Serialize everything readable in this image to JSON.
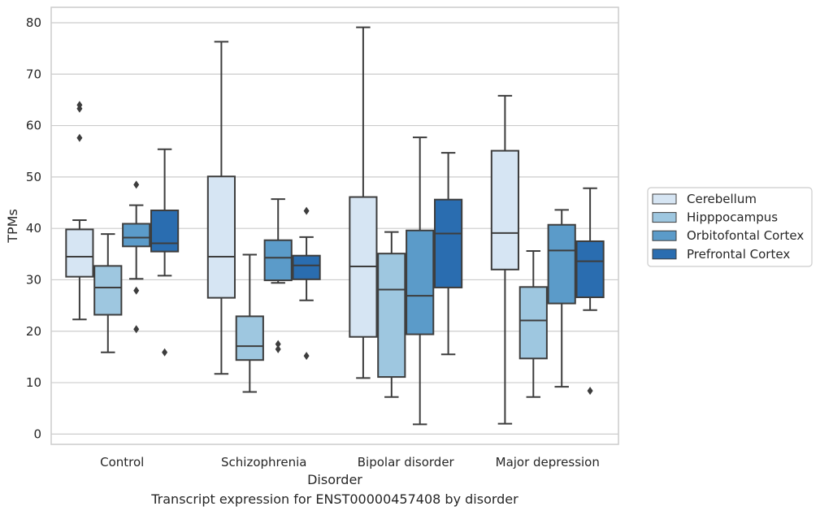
{
  "caption": "Transcript expression for ENST00000457408 by disorder",
  "chart_data": {
    "type": "box",
    "xlabel": "Disorder",
    "ylabel": "TPMs",
    "ylim": [
      -2,
      83
    ],
    "yticks": [
      0,
      10,
      20,
      30,
      40,
      50,
      60,
      70,
      80
    ],
    "grid": true,
    "legend_position": "right",
    "categories": [
      "Control",
      "Schizophrenia",
      "Bipolar disorder",
      "Major depression"
    ],
    "series": [
      {
        "name": "Cerebellum",
        "color": "#d6e5f3",
        "boxes": [
          {
            "whislo": 22.3,
            "q1": 30.6,
            "med": 34.5,
            "q3": 39.8,
            "whishi": 41.6,
            "fliers": [
              57.6,
              63.3,
              64.0
            ]
          },
          {
            "whislo": 11.7,
            "q1": 26.5,
            "med": 34.5,
            "q3": 50.1,
            "whishi": 76.3,
            "fliers": []
          },
          {
            "whislo": 10.9,
            "q1": 18.9,
            "med": 32.6,
            "q3": 46.1,
            "whishi": 79.1,
            "fliers": []
          },
          {
            "whislo": 2.0,
            "q1": 32.0,
            "med": 39.1,
            "q3": 55.1,
            "whishi": 65.8,
            "fliers": []
          }
        ]
      },
      {
        "name": "Hipppocampus",
        "color": "#9ec7e0",
        "boxes": [
          {
            "whislo": 15.9,
            "q1": 23.2,
            "med": 28.5,
            "q3": 32.7,
            "whishi": 38.9,
            "fliers": []
          },
          {
            "whislo": 8.2,
            "q1": 14.4,
            "med": 17.1,
            "q3": 22.9,
            "whishi": 34.9,
            "fliers": []
          },
          {
            "whislo": 7.2,
            "q1": 11.1,
            "med": 28.1,
            "q3": 35.1,
            "whishi": 39.3,
            "fliers": []
          },
          {
            "whislo": 7.2,
            "q1": 14.7,
            "med": 22.1,
            "q3": 28.6,
            "whishi": 35.6,
            "fliers": []
          }
        ]
      },
      {
        "name": "Orbitofontal Cortex",
        "color": "#5b9bc9",
        "boxes": [
          {
            "whislo": 30.2,
            "q1": 36.5,
            "med": 38.2,
            "q3": 40.9,
            "whishi": 44.5,
            "fliers": [
              48.5,
              27.9,
              20.4
            ]
          },
          {
            "whislo": 29.4,
            "q1": 29.9,
            "med": 34.3,
            "q3": 37.7,
            "whishi": 45.7,
            "fliers": [
              17.5,
              16.5
            ]
          },
          {
            "whislo": 1.9,
            "q1": 19.4,
            "med": 26.9,
            "q3": 39.6,
            "whishi": 57.7,
            "fliers": []
          },
          {
            "whislo": 9.2,
            "q1": 25.4,
            "med": 35.7,
            "q3": 40.7,
            "whishi": 43.6,
            "fliers": []
          }
        ]
      },
      {
        "name": "Prefrontal Cortex",
        "color": "#2a6db0",
        "boxes": [
          {
            "whislo": 30.8,
            "q1": 35.5,
            "med": 37.1,
            "q3": 43.5,
            "whishi": 55.4,
            "fliers": [
              15.9
            ]
          },
          {
            "whislo": 26.0,
            "q1": 30.1,
            "med": 32.8,
            "q3": 34.7,
            "whishi": 38.3,
            "fliers": [
              43.4,
              15.2
            ]
          },
          {
            "whislo": 15.5,
            "q1": 28.5,
            "med": 39.0,
            "q3": 45.6,
            "whishi": 54.7,
            "fliers": []
          },
          {
            "whislo": 24.1,
            "q1": 26.6,
            "med": 33.6,
            "q3": 37.5,
            "whishi": 47.8,
            "fliers": [
              8.4
            ]
          }
        ]
      }
    ]
  }
}
